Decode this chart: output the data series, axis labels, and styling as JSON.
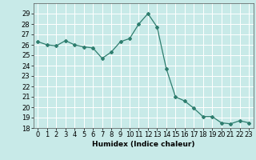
{
  "x": [
    0,
    1,
    2,
    3,
    4,
    5,
    6,
    7,
    8,
    9,
    10,
    11,
    12,
    13,
    14,
    15,
    16,
    17,
    18,
    19,
    20,
    21,
    22,
    23
  ],
  "y": [
    26.3,
    26.0,
    25.9,
    26.4,
    26.0,
    25.8,
    25.7,
    24.7,
    25.3,
    26.3,
    26.6,
    28.0,
    29.0,
    27.7,
    23.7,
    21.0,
    20.6,
    19.9,
    19.1,
    19.1,
    18.5,
    18.4,
    18.7,
    18.5
  ],
  "line_color": "#2e7d6e",
  "marker": "D",
  "markersize": 2.0,
  "linewidth": 0.9,
  "background_color": "#c8eae8",
  "grid_color": "#ffffff",
  "xlabel": "Humidex (Indice chaleur)",
  "ylim": [
    18,
    30
  ],
  "xlim": [
    -0.5,
    23.5
  ],
  "yticks": [
    18,
    19,
    20,
    21,
    22,
    23,
    24,
    25,
    26,
    27,
    28,
    29
  ],
  "xticks": [
    0,
    1,
    2,
    3,
    4,
    5,
    6,
    7,
    8,
    9,
    10,
    11,
    12,
    13,
    14,
    15,
    16,
    17,
    18,
    19,
    20,
    21,
    22,
    23
  ],
  "xlabel_fontsize": 6.5,
  "tick_fontsize": 6.0
}
